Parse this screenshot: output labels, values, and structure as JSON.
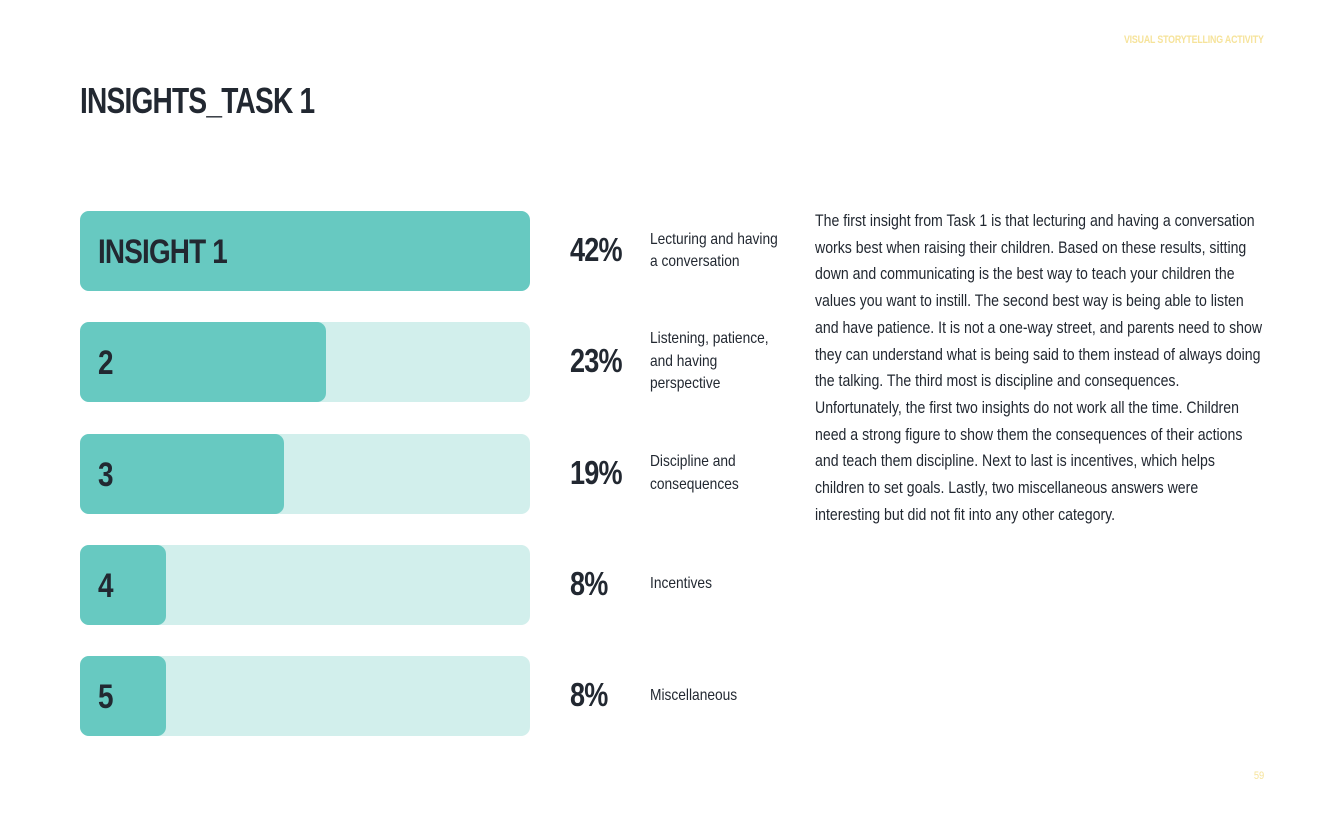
{
  "header": {
    "label": "VISUAL STORYTELLING ACTIVITY"
  },
  "title": "INSIGHTS_TASK 1",
  "colors": {
    "accent": "#67c9c1",
    "track": "#d2efec",
    "text": "#222831",
    "header": "#f6e39a"
  },
  "chart_data": {
    "type": "bar",
    "orientation": "horizontal",
    "categories": [
      "Lecturing and having a conversation",
      "Listening, patience, and having perspective",
      "Discipline and consequences",
      "Incentives",
      "Miscellaneous"
    ],
    "bar_labels": [
      "INSIGHT 1",
      "2",
      "3",
      "4",
      "5"
    ],
    "values": [
      42,
      23,
      19,
      8,
      8
    ],
    "value_labels": [
      "42%",
      "23%",
      "19%",
      "8%",
      "8%"
    ],
    "xlim": [
      0,
      42
    ],
    "title": "",
    "xlabel": "",
    "ylabel": ""
  },
  "body_text": "The first insight from Task 1 is that lecturing and having a conversation works best when raising their children. Based on these results, sitting down and communicating is the best way to teach your children the values you want to instill. The second best way is being able to listen and have patience. It is not a one-way street, and parents need to show they can understand what is being said to them instead of always doing the talking. The third most is discipline and consequences. Unfortunately, the first two insights do not work all the time. Children need a strong figure to show them the consequences of their actions and teach them discipline. Next to last is incentives, which helps children to set goals. Lastly, two miscellaneous answers were interesting but did not fit into any other category.",
  "page_number": "59"
}
